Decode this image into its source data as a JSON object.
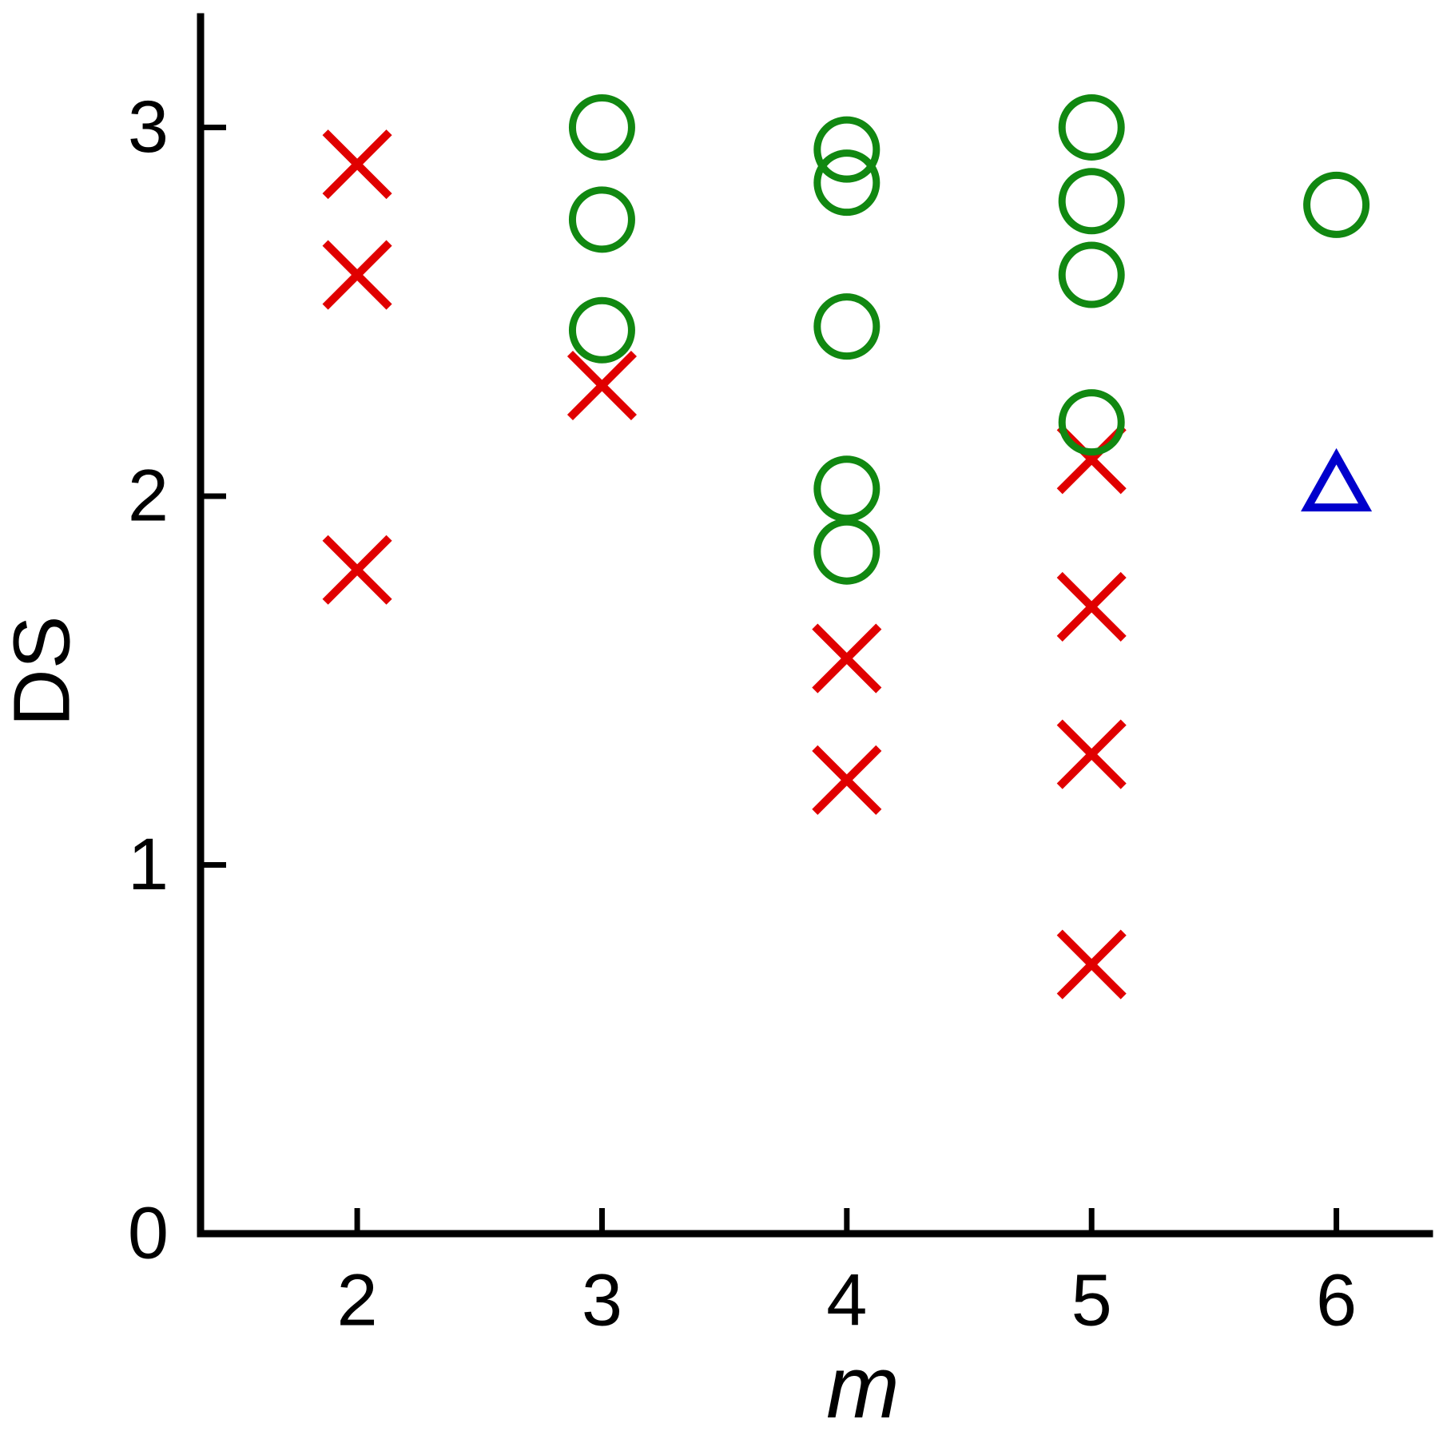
{
  "chart_data": {
    "type": "scatter",
    "xlabel": "m",
    "ylabel": "DS",
    "xlim": [
      1.36,
      6.38
    ],
    "ylim": [
      0,
      3.3
    ],
    "xticks": [
      2,
      3,
      4,
      5,
      6
    ],
    "yticks": [
      0,
      1,
      2,
      3
    ],
    "series": [
      {
        "marker": "x",
        "color": "#e00000",
        "x": [
          2,
          2,
          2,
          3,
          4,
          4,
          5,
          5,
          5,
          5
        ],
        "values": [
          2.9,
          2.6,
          1.8,
          2.3,
          1.56,
          1.23,
          2.1,
          1.7,
          1.3,
          0.73
        ]
      },
      {
        "marker": "circle",
        "color": "#118811",
        "x": [
          3,
          3,
          3,
          4,
          4,
          4,
          4,
          4,
          5,
          5,
          5,
          5,
          6
        ],
        "values": [
          3.0,
          2.75,
          2.45,
          2.94,
          2.85,
          2.46,
          2.02,
          1.85,
          3.0,
          2.8,
          2.6,
          2.2,
          2.79
        ]
      },
      {
        "marker": "triangle",
        "color": "#0000cc",
        "x": [
          6
        ],
        "values": [
          2.03
        ]
      }
    ]
  }
}
